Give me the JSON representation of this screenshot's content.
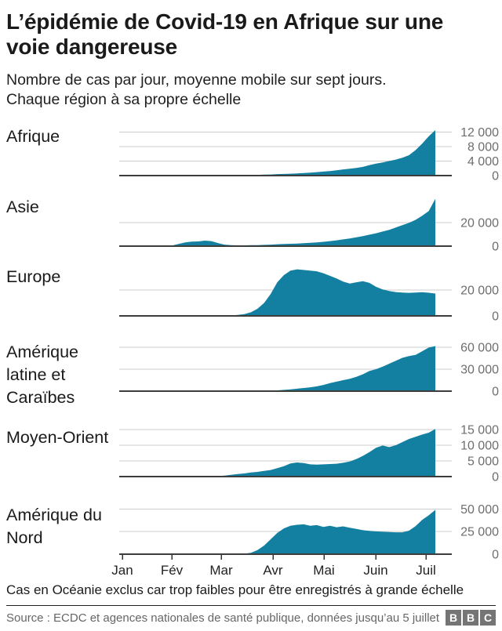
{
  "header": {
    "title": "L’épidémie de Covid-19 en Afrique sur une voie dangereuse",
    "subtitle_lines": [
      "Nombre de cas par jour, moyenne mobile sur sept jours.",
      "Chaque région à sa propre échelle"
    ]
  },
  "colors": {
    "area": "#1380A1",
    "gridline": "#cccccc",
    "baseline": "#3d3d3d",
    "tick_label": "#6e6e6e",
    "month_label": "#222222",
    "bbc_block": "#757575"
  },
  "chart_data": {
    "type": "area",
    "title": "Nombre de cas par jour, moyenne mobile sur sept jours. Chaque région à sa propre échelle",
    "x_axis": {
      "tick_labels": [
        "Jan",
        "Fév",
        "Mar",
        "Avr",
        "Mai",
        "Juin",
        "Juil"
      ]
    },
    "charts": [
      {
        "label": "Afrique",
        "ymax": 13800,
        "yticks": [
          {
            "v": 12000,
            "label": "12 000"
          },
          {
            "v": 8000,
            "label": "8 000"
          },
          {
            "v": 4000,
            "label": "4 000"
          },
          {
            "v": 0,
            "label": "0"
          }
        ],
        "values": [
          0,
          0,
          0,
          0,
          0,
          0,
          0,
          0,
          0,
          0,
          5,
          10,
          15,
          20,
          30,
          40,
          60,
          80,
          100,
          130,
          160,
          200,
          250,
          300,
          400,
          450,
          520,
          600,
          680,
          800,
          950,
          1100,
          1250,
          1450,
          1700,
          1900,
          2100,
          2400,
          2900,
          3300,
          3600,
          4000,
          4400,
          4900,
          5600,
          7000,
          8800,
          10800,
          12500
        ]
      },
      {
        "label": "Asie",
        "ymax": 43000,
        "yticks": [
          {
            "v": 20000,
            "label": "20 000"
          },
          {
            "v": 0,
            "label": "0"
          }
        ],
        "values": [
          0,
          0,
          0,
          0,
          0,
          0,
          0,
          100,
          500,
          1800,
          3200,
          3800,
          4000,
          4700,
          4300,
          2600,
          1300,
          900,
          700,
          700,
          800,
          900,
          1100,
          1300,
          1600,
          1800,
          2000,
          2200,
          2500,
          2800,
          3200,
          3700,
          4300,
          5000,
          5800,
          6600,
          7500,
          8500,
          9800,
          11000,
          12500,
          14000,
          16000,
          18000,
          20000,
          22500,
          26000,
          30000,
          40500
        ]
      },
      {
        "label": "Europe",
        "ymax": 38800,
        "yticks": [
          {
            "v": 20000,
            "label": "20 000"
          },
          {
            "v": 0,
            "label": "0"
          }
        ],
        "values": [
          0,
          0,
          0,
          0,
          0,
          0,
          0,
          0,
          0,
          0,
          0,
          0,
          0,
          0,
          0,
          0,
          100,
          300,
          700,
          1400,
          2800,
          5500,
          10000,
          17000,
          26000,
          31500,
          35000,
          36000,
          35500,
          35000,
          34500,
          33000,
          31000,
          29000,
          26500,
          25000,
          26000,
          26800,
          25500,
          22500,
          20500,
          19200,
          18400,
          18000,
          17800,
          18000,
          18300,
          17900,
          17300
        ]
      },
      {
        "label": "Amérique latine et Caraïbes",
        "ymax": 68500,
        "yticks": [
          {
            "v": 60000,
            "label": "60 000"
          },
          {
            "v": 30000,
            "label": "30 000"
          },
          {
            "v": 0,
            "label": "0"
          }
        ],
        "values": [
          0,
          0,
          0,
          0,
          0,
          0,
          0,
          0,
          0,
          0,
          0,
          0,
          0,
          0,
          0,
          0,
          0,
          0,
          0,
          0,
          0,
          200,
          400,
          700,
          1100,
          1700,
          2400,
          3300,
          4300,
          5200,
          6500,
          8500,
          11000,
          13000,
          15000,
          16800,
          19500,
          23000,
          27500,
          30000,
          33500,
          37500,
          41500,
          45500,
          48000,
          49500,
          54500,
          59500,
          61500
        ]
      },
      {
        "label": "Moyen-Orient",
        "ymax": 16000,
        "yticks": [
          {
            "v": 15000,
            "label": "15 000"
          },
          {
            "v": 10000,
            "label": "10 000"
          },
          {
            "v": 5000,
            "label": "5 000"
          },
          {
            "v": 0,
            "label": "0"
          }
        ],
        "values": [
          0,
          0,
          0,
          0,
          0,
          0,
          0,
          0,
          0,
          0,
          0,
          0,
          0,
          0,
          50,
          150,
          300,
          550,
          800,
          1000,
          1300,
          1500,
          1800,
          2100,
          2700,
          3300,
          4200,
          4500,
          4300,
          3900,
          3800,
          3900,
          4000,
          4100,
          4400,
          4800,
          5600,
          6600,
          7800,
          9200,
          9900,
          9400,
          10000,
          11000,
          12000,
          12700,
          13400,
          14000,
          15200
        ]
      },
      {
        "label": "Amérique du Nord",
        "ymax": 55500,
        "yticks": [
          {
            "v": 50000,
            "label": "50 000"
          },
          {
            "v": 25000,
            "label": "25 000"
          },
          {
            "v": 0,
            "label": "0"
          }
        ],
        "values": [
          0,
          0,
          0,
          0,
          0,
          0,
          0,
          0,
          0,
          0,
          0,
          0,
          0,
          0,
          0,
          0,
          0,
          0,
          0,
          500,
          1500,
          4500,
          9500,
          16500,
          23500,
          28500,
          31500,
          32500,
          33000,
          31500,
          32200,
          30200,
          31500,
          29800,
          30800,
          29200,
          28000,
          26500,
          25800,
          25200,
          24800,
          24500,
          24200,
          24200,
          26000,
          31000,
          38000,
          43000,
          49000
        ]
      }
    ]
  },
  "footer": {
    "note": "Cas en Océanie exclus car trop faibles pour être enregistrés à grande échelle",
    "source": "Source : ECDC et agences nationales de santé publique, données jusqu’au 5 juillet",
    "bbc_letters": [
      "B",
      "B",
      "C"
    ]
  }
}
